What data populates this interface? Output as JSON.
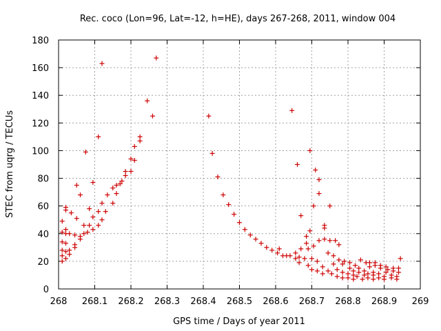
{
  "chart_data": {
    "type": "scatter",
    "title": "Rec. coco (Lon=96, Lat=-12, h=HE), days 267-268, 2011, window 004",
    "xlabel": "GPS time / Days of year 2011",
    "ylabel": "STEC from uqrg / TECUs",
    "xlim": [
      268,
      269
    ],
    "ylim": [
      0,
      180
    ],
    "xticks": [
      "268",
      "268.1",
      "268.2",
      "268.3",
      "268.4",
      "268.5",
      "268.6",
      "268.7",
      "268.8",
      "268.9",
      "269"
    ],
    "yticks": [
      "0",
      "20",
      "40",
      "60",
      "80",
      "100",
      "120",
      "140",
      "160",
      "180"
    ],
    "grid": true,
    "marker": "+",
    "color": "#cc0000",
    "points": [
      [
        268.01,
        20
      ],
      [
        268.01,
        24
      ],
      [
        268.01,
        28
      ],
      [
        268.01,
        34
      ],
      [
        268.01,
        41
      ],
      [
        268.01,
        49
      ],
      [
        268.02,
        22
      ],
      [
        268.02,
        27
      ],
      [
        268.02,
        33
      ],
      [
        268.02,
        40
      ],
      [
        268.02,
        43
      ],
      [
        268.02,
        57
      ],
      [
        268.02,
        59
      ],
      [
        268.03,
        25
      ],
      [
        268.03,
        28
      ],
      [
        268.03,
        40
      ],
      [
        268.035,
        55
      ],
      [
        268.045,
        30
      ],
      [
        268.045,
        32
      ],
      [
        268.045,
        39
      ],
      [
        268.05,
        51
      ],
      [
        268.05,
        75
      ],
      [
        268.06,
        36
      ],
      [
        268.06,
        38
      ],
      [
        268.06,
        68
      ],
      [
        268.07,
        40
      ],
      [
        268.07,
        46
      ],
      [
        268.075,
        99
      ],
      [
        268.08,
        41
      ],
      [
        268.085,
        58
      ],
      [
        268.085,
        46
      ],
      [
        268.095,
        77
      ],
      [
        268.095,
        52
      ],
      [
        268.095,
        43
      ],
      [
        268.11,
        110
      ],
      [
        268.11,
        46
      ],
      [
        268.11,
        56
      ],
      [
        268.12,
        163
      ],
      [
        268.12,
        50
      ],
      [
        268.12,
        62
      ],
      [
        268.13,
        56
      ],
      [
        268.135,
        68
      ],
      [
        268.15,
        62
      ],
      [
        268.15,
        73
      ],
      [
        268.16,
        69
      ],
      [
        268.16,
        75
      ],
      [
        268.17,
        76
      ],
      [
        268.175,
        78
      ],
      [
        268.185,
        82
      ],
      [
        268.185,
        85
      ],
      [
        268.2,
        85
      ],
      [
        268.2,
        94
      ],
      [
        268.21,
        93
      ],
      [
        268.21,
        103
      ],
      [
        268.225,
        107
      ],
      [
        268.225,
        110
      ],
      [
        268.245,
        136
      ],
      [
        268.26,
        125
      ],
      [
        268.27,
        167
      ],
      [
        268.415,
        125
      ],
      [
        268.425,
        98
      ],
      [
        268.44,
        81
      ],
      [
        268.455,
        68
      ],
      [
        268.47,
        61
      ],
      [
        268.485,
        54
      ],
      [
        268.5,
        48
      ],
      [
        268.515,
        43
      ],
      [
        268.53,
        39
      ],
      [
        268.545,
        36
      ],
      [
        268.56,
        33
      ],
      [
        268.575,
        30
      ],
      [
        268.59,
        28
      ],
      [
        268.605,
        26
      ],
      [
        268.61,
        29
      ],
      [
        268.62,
        24
      ],
      [
        268.63,
        24
      ],
      [
        268.64,
        24
      ],
      [
        268.645,
        129
      ],
      [
        268.655,
        22
      ],
      [
        268.655,
        26
      ],
      [
        268.66,
        90
      ],
      [
        268.665,
        19
      ],
      [
        268.665,
        23
      ],
      [
        268.67,
        29
      ],
      [
        268.67,
        53
      ],
      [
        268.68,
        22
      ],
      [
        268.685,
        33
      ],
      [
        268.685,
        38
      ],
      [
        268.69,
        17
      ],
      [
        268.69,
        29
      ],
      [
        268.695,
        42
      ],
      [
        268.695,
        100
      ],
      [
        268.7,
        14
      ],
      [
        268.7,
        22
      ],
      [
        268.705,
        31
      ],
      [
        268.705,
        60
      ],
      [
        268.71,
        86
      ],
      [
        268.715,
        13
      ],
      [
        268.715,
        20
      ],
      [
        268.72,
        35
      ],
      [
        268.72,
        69
      ],
      [
        268.72,
        79
      ],
      [
        268.73,
        11
      ],
      [
        268.73,
        16
      ],
      [
        268.735,
        36
      ],
      [
        268.735,
        44
      ],
      [
        268.735,
        46
      ],
      [
        268.745,
        13
      ],
      [
        268.745,
        26
      ],
      [
        268.75,
        35
      ],
      [
        268.75,
        60
      ],
      [
        268.755,
        11
      ],
      [
        268.76,
        18
      ],
      [
        268.76,
        24
      ],
      [
        268.765,
        35
      ],
      [
        268.77,
        9
      ],
      [
        268.77,
        14
      ],
      [
        268.775,
        21
      ],
      [
        268.775,
        32
      ],
      [
        268.785,
        8
      ],
      [
        268.785,
        12
      ],
      [
        268.785,
        18
      ],
      [
        268.79,
        20
      ],
      [
        268.8,
        8
      ],
      [
        268.8,
        11
      ],
      [
        268.805,
        15
      ],
      [
        268.805,
        19
      ],
      [
        268.815,
        7
      ],
      [
        268.815,
        10
      ],
      [
        268.815,
        13
      ],
      [
        268.82,
        17
      ],
      [
        268.825,
        9
      ],
      [
        268.83,
        12
      ],
      [
        268.83,
        15
      ],
      [
        268.835,
        21
      ],
      [
        268.84,
        7
      ],
      [
        268.845,
        10
      ],
      [
        268.845,
        13
      ],
      [
        268.85,
        19
      ],
      [
        268.855,
        8
      ],
      [
        268.855,
        11
      ],
      [
        268.86,
        16
      ],
      [
        268.86,
        19
      ],
      [
        268.87,
        7
      ],
      [
        268.87,
        10
      ],
      [
        268.87,
        12
      ],
      [
        268.875,
        17
      ],
      [
        268.875,
        19
      ],
      [
        268.885,
        8
      ],
      [
        268.885,
        11
      ],
      [
        268.89,
        15
      ],
      [
        268.89,
        17
      ],
      [
        268.9,
        7
      ],
      [
        268.9,
        9
      ],
      [
        268.905,
        12
      ],
      [
        268.905,
        16
      ],
      [
        268.91,
        14
      ],
      [
        268.92,
        8
      ],
      [
        268.92,
        10
      ],
      [
        268.925,
        13
      ],
      [
        268.925,
        15
      ],
      [
        268.935,
        7
      ],
      [
        268.935,
        9
      ],
      [
        268.94,
        12
      ],
      [
        268.94,
        15
      ],
      [
        268.945,
        22
      ]
    ]
  }
}
